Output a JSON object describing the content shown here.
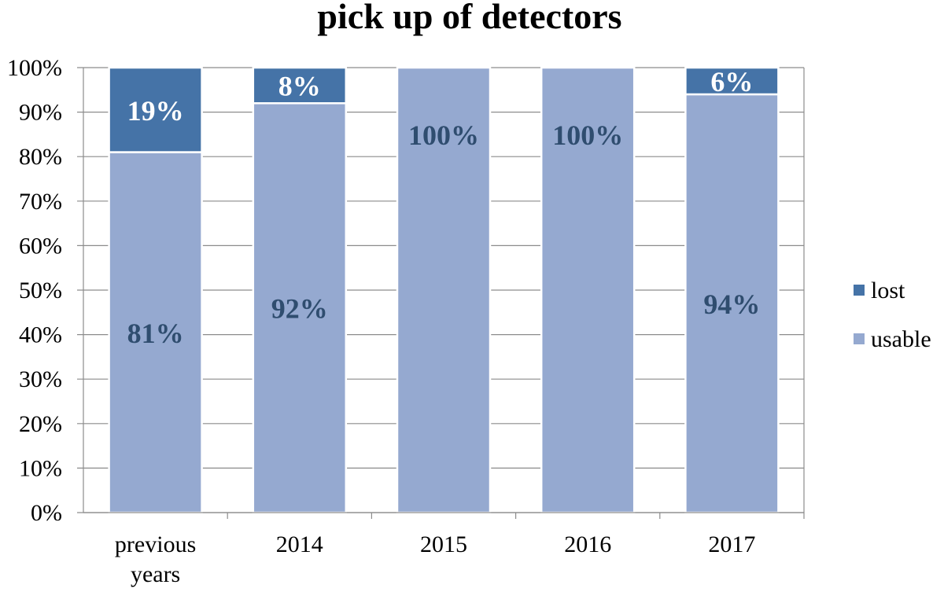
{
  "chart_data": {
    "type": "bar",
    "stacked": true,
    "title": "pick up of detectors",
    "xlabel": "",
    "ylabel": "",
    "categories": [
      "previous years",
      "2014",
      "2015",
      "2016",
      "2017"
    ],
    "category_lines": [
      [
        "previous",
        "years"
      ],
      [
        "2014"
      ],
      [
        "2015"
      ],
      [
        "2016"
      ],
      [
        "2017"
      ]
    ],
    "series": [
      {
        "name": "usable",
        "values": [
          81,
          92,
          100,
          100,
          94
        ],
        "labels": [
          "81%",
          "92%",
          "100%",
          "100%",
          "94%"
        ],
        "color": "#95A9D0",
        "label_color": "#2F4D6F"
      },
      {
        "name": "lost",
        "values": [
          19,
          8,
          0,
          0,
          6
        ],
        "labels": [
          "19%",
          "8%",
          "",
          "",
          "6%"
        ],
        "color": "#4573A7",
        "label_color": "#FFFFFF"
      }
    ],
    "ylim": [
      0,
      100
    ],
    "yticks": [
      "0%",
      "10%",
      "20%",
      "30%",
      "40%",
      "50%",
      "60%",
      "70%",
      "80%",
      "90%",
      "100%"
    ],
    "grid": true,
    "legend": {
      "placement": "right",
      "entries": [
        "lost",
        "usable"
      ]
    }
  }
}
